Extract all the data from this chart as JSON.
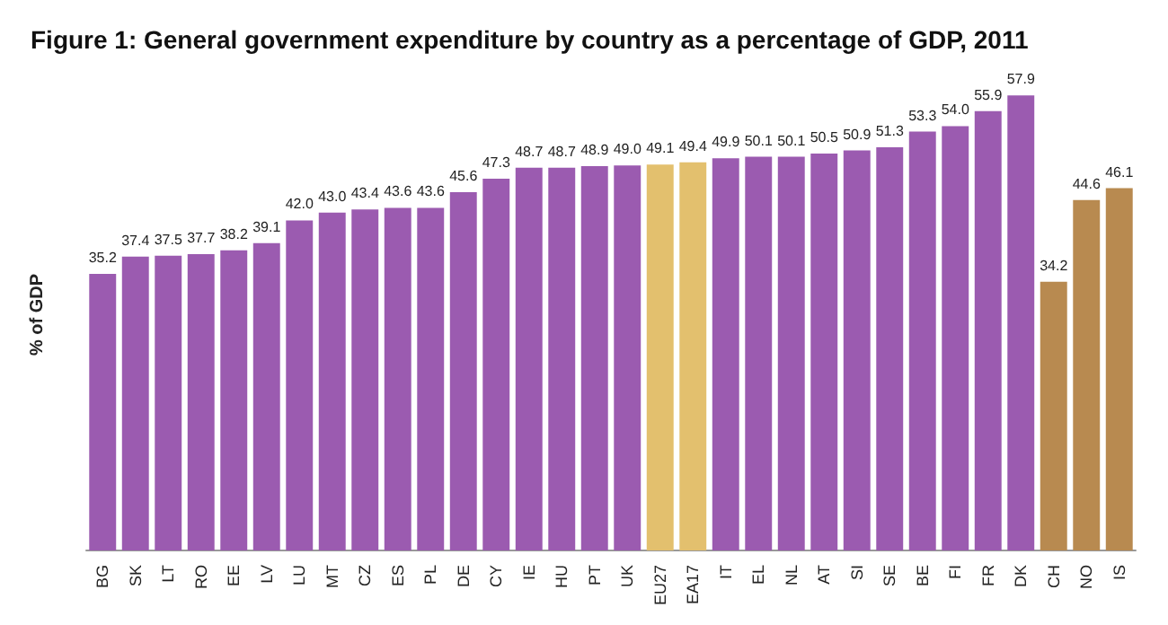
{
  "chart_data": {
    "type": "bar",
    "title": "Figure 1: General government expenditure by country as a percentage of GDP, 2011",
    "ylabel": "% of GDP",
    "categories": [
      "BG",
      "SK",
      "LT",
      "RO",
      "EE",
      "LV",
      "LU",
      "MT",
      "CZ",
      "ES",
      "PL",
      "DE",
      "CY",
      "IE",
      "HU",
      "PT",
      "UK",
      "EU27",
      "EA17",
      "IT",
      "EL",
      "NL",
      "AT",
      "SI",
      "SE",
      "BE",
      "FI",
      "FR",
      "DK",
      "CH",
      "NO",
      "IS"
    ],
    "values": [
      35.2,
      37.4,
      37.5,
      37.7,
      38.2,
      39.1,
      42.0,
      43.0,
      43.4,
      43.6,
      43.6,
      45.6,
      47.3,
      48.7,
      48.7,
      48.9,
      49.0,
      49.1,
      49.4,
      49.9,
      50.1,
      50.1,
      50.5,
      50.9,
      51.3,
      53.3,
      54.0,
      55.9,
      57.9,
      34.2,
      44.6,
      46.1
    ],
    "value_labels": [
      "35.2",
      "37.4",
      "37.5",
      "37.7",
      "38.2",
      "39.1",
      "42.0",
      "43.0",
      "43.4",
      "43.6",
      "43.6",
      "45.6",
      "47.3",
      "48.7",
      "48.7",
      "48.9",
      "49.0",
      "49.1",
      "49.4",
      "49.9",
      "50.1",
      "50.1",
      "50.5",
      "50.9",
      "51.3",
      "53.3",
      "54.0",
      "55.9",
      "57.9",
      "34.2",
      "44.6",
      "46.1"
    ],
    "colors": [
      "#9b5bb0",
      "#9b5bb0",
      "#9b5bb0",
      "#9b5bb0",
      "#9b5bb0",
      "#9b5bb0",
      "#9b5bb0",
      "#9b5bb0",
      "#9b5bb0",
      "#9b5bb0",
      "#9b5bb0",
      "#9b5bb0",
      "#9b5bb0",
      "#9b5bb0",
      "#9b5bb0",
      "#9b5bb0",
      "#9b5bb0",
      "#e3c06e",
      "#e3c06e",
      "#9b5bb0",
      "#9b5bb0",
      "#9b5bb0",
      "#9b5bb0",
      "#9b5bb0",
      "#9b5bb0",
      "#9b5bb0",
      "#9b5bb0",
      "#9b5bb0",
      "#9b5bb0",
      "#b88a50",
      "#b88a50",
      "#b88a50"
    ],
    "grid": false
  }
}
